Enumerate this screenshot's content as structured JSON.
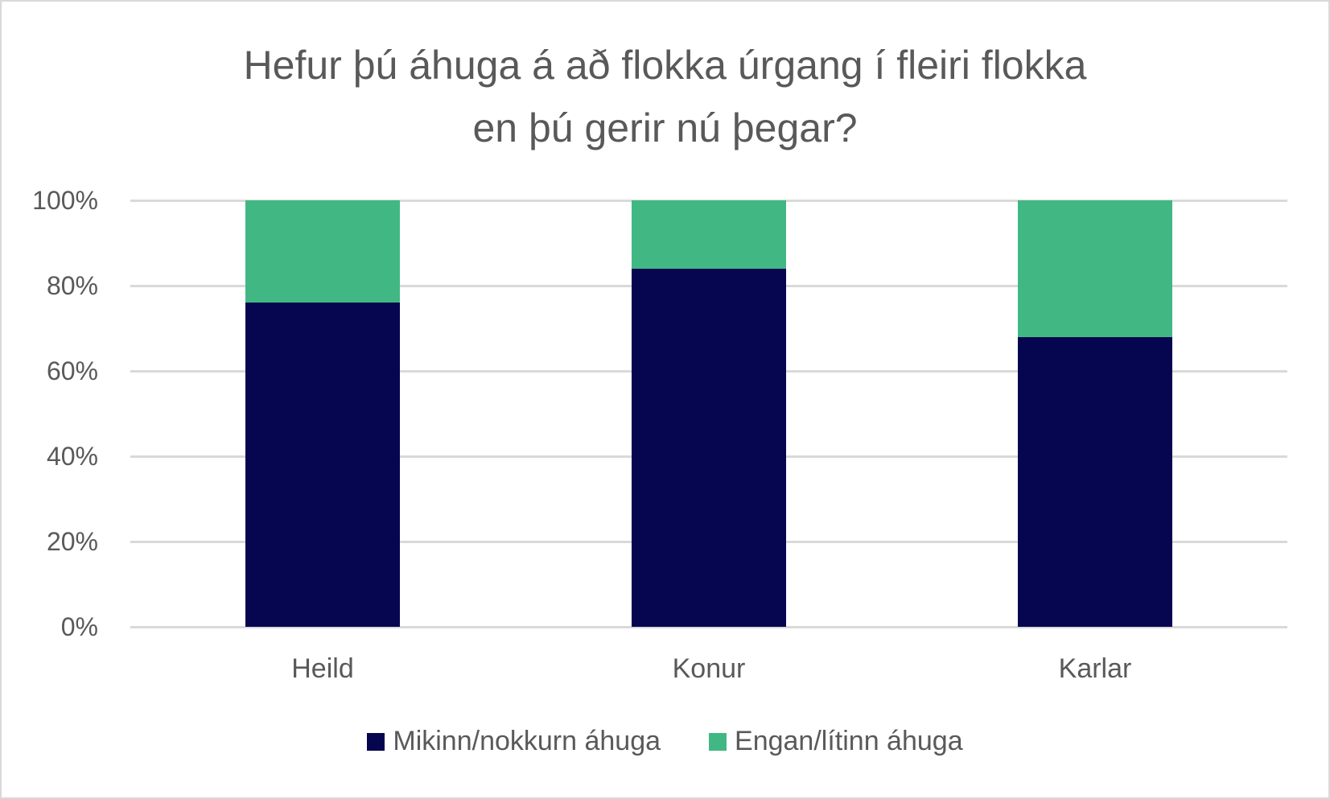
{
  "chart_data": {
    "type": "bar",
    "stacked": true,
    "title": "Hefur þú áhuga á að flokka úrgang í fleiri flokka en þú gerir nú þegar?",
    "title_lines": [
      "Hefur þú áhuga á að flokka úrgang í fleiri flokka",
      "en þú gerir nú þegar?"
    ],
    "categories": [
      "Heild",
      "Konur",
      "Karlar"
    ],
    "series": [
      {
        "name": "Mikinn/nokkurn áhuga",
        "color": "#050550",
        "values": [
          76,
          84,
          68
        ]
      },
      {
        "name": "Engan/lítinn áhuga",
        "color": "#41b883",
        "values": [
          24,
          16,
          32
        ]
      }
    ],
    "xlabel": "",
    "ylabel": "",
    "ylim": [
      0,
      100
    ],
    "yticks": [
      "0%",
      "20%",
      "40%",
      "60%",
      "80%",
      "100%"
    ],
    "grid": true,
    "legend_position": "bottom"
  }
}
